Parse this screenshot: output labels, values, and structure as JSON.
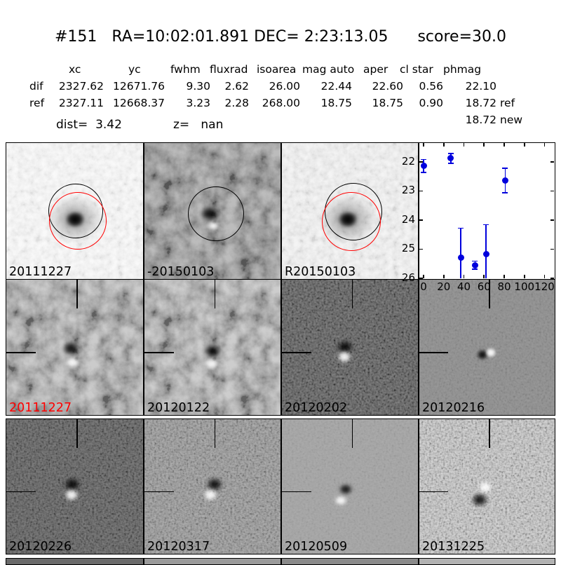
{
  "header": {
    "title": "#151   RA=10:02:01.891 DEC= 2:23:13.05      score=30.0"
  },
  "table": {
    "columns": [
      "xc",
      "yc",
      "fwhm",
      "fluxrad",
      "isoarea",
      "mag auto",
      "aper",
      "cl star",
      "phmag"
    ],
    "rows": [
      {
        "label": "dif",
        "values": [
          "2327.62",
          "12671.76",
          "9.30",
          "2.62",
          "26.00",
          "22.44",
          "22.60",
          "0.56",
          "22.10"
        ],
        "suffix": ""
      },
      {
        "label": "ref",
        "values": [
          "2327.11",
          "12668.37",
          "3.23",
          "2.28",
          "268.00",
          "18.75",
          "18.75",
          "0.90",
          "18.72"
        ],
        "suffix": "ref"
      }
    ],
    "extra_phmag": {
      "value": "18.72",
      "suffix": "new"
    },
    "dist_label": "dist=  3.42",
    "z_label": "z=   nan"
  },
  "cutouts": {
    "row1": [
      {
        "label": "20111227"
      },
      {
        "label": "-20150103"
      },
      {
        "label": "R20150103"
      }
    ],
    "row2": [
      {
        "label": "20111227",
        "label_color": "#ff0000"
      },
      {
        "label": "20120122"
      },
      {
        "label": "20120202"
      },
      {
        "label": "20120216"
      }
    ],
    "row3": [
      {
        "label": "20120226"
      },
      {
        "label": "20120317"
      },
      {
        "label": "20120509"
      },
      {
        "label": "20131225"
      }
    ]
  },
  "chart_data": {
    "type": "scatter",
    "title": "",
    "xlabel": "",
    "ylabel": "",
    "x_ticks": [
      0,
      20,
      40,
      60,
      80,
      100,
      120
    ],
    "y_ticks": [
      22,
      23,
      24,
      25,
      26
    ],
    "xlim": [
      -4.2,
      129.4
    ],
    "ylim": [
      21.35,
      26
    ],
    "y_inverted": true,
    "grid": false,
    "legend": "none",
    "marker_color": "#0000dd",
    "points": [
      {
        "x": 0,
        "y": 22.14,
        "yerr": 0.22
      },
      {
        "x": 27,
        "y": 21.88,
        "yerr": 0.17
      },
      {
        "x": 37,
        "y": 25.28,
        "yerr": 1.0
      },
      {
        "x": 51,
        "y": 25.55,
        "yerr": 0.14
      },
      {
        "x": 62,
        "y": 25.16,
        "yerr": 1.0
      },
      {
        "x": 81,
        "y": 22.64,
        "yerr": 0.42
      }
    ]
  },
  "colors": {
    "marker": "#0000dd",
    "alert_label": "#ff0000",
    "aperture_circle_black": "#000000",
    "aperture_circle_red": "#ff0000"
  }
}
